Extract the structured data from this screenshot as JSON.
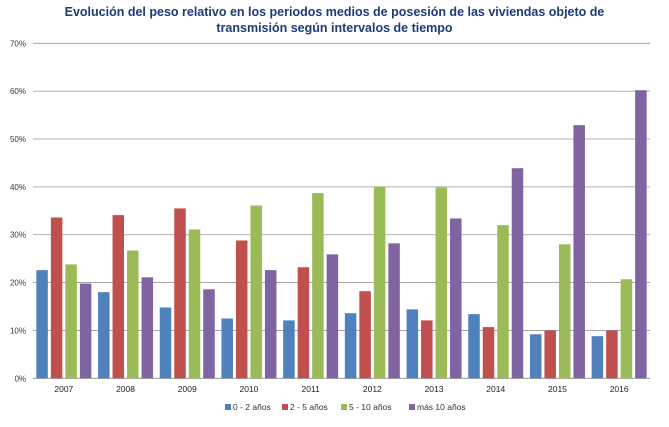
{
  "chart_data": {
    "type": "bar",
    "title_line1": "Evolución del peso relativo en los periodos medios de posesión de las viviendas objeto de",
    "title_line2": "transmisión según intervalos de tiempo",
    "categories": [
      "2007",
      "2008",
      "2009",
      "2010",
      "2011",
      "2012",
      "2013",
      "2014",
      "2015",
      "2016"
    ],
    "ylim": [
      0,
      70
    ],
    "yticks": [
      0,
      10,
      20,
      30,
      40,
      50,
      60,
      70
    ],
    "ytick_labels": [
      "0%",
      "10%",
      "20%",
      "30%",
      "40%",
      "50%",
      "60%",
      "70%"
    ],
    "grid": true,
    "legend_position": "bottom",
    "series": [
      {
        "name": "0 - 2 años",
        "color": "#4f81bd",
        "values": [
          22.6,
          18.0,
          14.8,
          12.5,
          12.1,
          13.6,
          14.4,
          13.4,
          9.2,
          8.8
        ]
      },
      {
        "name": "2 - 5 años",
        "color": "#c0504d",
        "values": [
          33.6,
          34.1,
          35.5,
          28.8,
          23.2,
          18.2,
          12.1,
          10.7,
          10.0,
          10.0
        ]
      },
      {
        "name": "5 - 10 años",
        "color": "#9bbb59",
        "values": [
          23.8,
          26.7,
          31.1,
          36.1,
          38.7,
          40.1,
          39.9,
          32.0,
          28.0,
          20.7
        ]
      },
      {
        "name": "más 10 años",
        "color": "#8064a2",
        "values": [
          19.8,
          21.1,
          18.6,
          22.6,
          25.9,
          28.2,
          33.4,
          43.9,
          52.9,
          60.2
        ]
      }
    ]
  }
}
